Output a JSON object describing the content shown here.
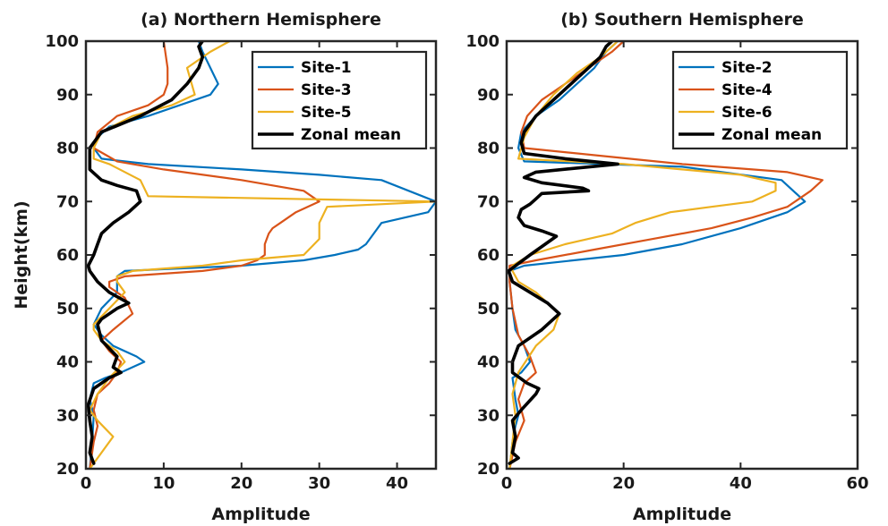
{
  "chart_data": [
    {
      "type": "line",
      "title": "(a) Northern Hemisphere",
      "xlabel": "Amplitude",
      "ylabel": "Height(km)",
      "xlim": [
        0,
        45
      ],
      "ylim": [
        20,
        100
      ],
      "xticks": [
        "0",
        "10",
        "20",
        "30",
        "40"
      ],
      "yticks": [
        "20",
        "30",
        "40",
        "50",
        "60",
        "70",
        "80",
        "90",
        "100"
      ],
      "legend_position": "top-right",
      "series": [
        {
          "name": "Site-1",
          "color": "#0072BD",
          "width": 2.2,
          "x": [
            0.5,
            0.8,
            1.0,
            0.5,
            1.0,
            2.5,
            4.5,
            7.5,
            6.5,
            3.5,
            2.0,
            1.0,
            2.0,
            4.0,
            4.0,
            4.0,
            5.0,
            20,
            28,
            32,
            35,
            36,
            37,
            38,
            44,
            45,
            38,
            30,
            20,
            8,
            2,
            1,
            1.5,
            3,
            8,
            16,
            17,
            16,
            15,
            14.5
          ],
          "y": [
            20,
            25,
            30,
            33,
            36,
            37,
            38,
            40,
            41,
            43,
            45,
            47,
            50,
            53,
            55,
            56,
            57,
            58,
            59,
            60,
            61,
            62,
            64,
            66,
            68,
            70,
            74,
            75,
            76,
            77,
            78,
            80,
            82,
            84,
            86,
            90,
            92,
            95,
            98,
            100
          ]
        },
        {
          "name": "Site-3",
          "color": "#D95319",
          "width": 2.2,
          "x": [
            0.5,
            1.0,
            1.5,
            1.0,
            1.5,
            3.0,
            4.0,
            4.5,
            3.0,
            2.0,
            3.5,
            6.0,
            5.0,
            3.0,
            3.0,
            5.0,
            15,
            20,
            22,
            23,
            23,
            23.5,
            24,
            25,
            27,
            30,
            28,
            20,
            10,
            4,
            1,
            1.5,
            4,
            8,
            10,
            10.5,
            10.5,
            10.2,
            10.0
          ],
          "y": [
            20,
            25,
            28,
            31,
            34,
            36,
            38,
            40,
            42,
            44,
            46,
            49,
            52,
            54,
            55,
            56,
            57,
            58,
            59,
            60,
            62,
            64,
            65,
            66,
            68,
            70,
            72,
            74,
            76,
            77.5,
            80,
            83,
            86,
            88,
            90,
            92,
            95,
            98,
            100
          ]
        },
        {
          "name": "Site-5",
          "color": "#EDB120",
          "width": 2.2,
          "x": [
            0.5,
            3.5,
            1.5,
            0.5,
            1.5,
            3.0,
            5.0,
            4.0,
            2.0,
            1.0,
            1.0,
            3.0,
            5.0,
            4.0,
            4.0,
            6.0,
            15,
            20,
            28,
            30,
            30,
            31,
            45,
            8,
            7,
            3,
            1,
            1,
            2,
            6,
            11,
            14,
            13,
            16,
            18.5
          ],
          "y": [
            20,
            26,
            29,
            31,
            34,
            37,
            40,
            42,
            44,
            46,
            47,
            50,
            53,
            55,
            56,
            57,
            58,
            59,
            60,
            63,
            66,
            69,
            70,
            71,
            74,
            77,
            78,
            80,
            83,
            86,
            88,
            90,
            95,
            98,
            100
          ]
        },
        {
          "name": "Zonal mean",
          "color": "#000000",
          "width": 3.6,
          "x": [
            1.0,
            0.5,
            0.8,
            0.5,
            0.3,
            1.0,
            2.0,
            3.0,
            4.5,
            3.5,
            4.0,
            2.0,
            1.5,
            2.0,
            4.0,
            5.5,
            3.0,
            1.5,
            0.5,
            0.3,
            1.0,
            1.5,
            2.0,
            3.5,
            5.5,
            7.0,
            6.5,
            4.0,
            2.0,
            0.5,
            0.5,
            0.5,
            2.0,
            7.0,
            11.0,
            13.0,
            14.5,
            15.0,
            14.5,
            15.0
          ],
          "y": [
            21,
            23,
            26,
            29,
            32,
            35,
            36,
            37,
            38,
            39,
            41,
            44,
            47,
            48,
            50,
            51,
            53,
            55,
            57,
            58,
            60,
            62,
            64,
            66,
            68,
            70,
            72,
            73,
            74,
            76,
            78,
            80,
            83,
            86,
            89,
            92,
            95,
            97,
            99,
            100
          ]
        }
      ]
    },
    {
      "type": "line",
      "title": "(b) Southern Hemisphere",
      "xlabel": "Amplitude",
      "ylabel": "",
      "xlim": [
        0,
        60
      ],
      "ylim": [
        20,
        100
      ],
      "xticks": [
        "0",
        "20",
        "40",
        "60"
      ],
      "yticks": [
        "20",
        "30",
        "40",
        "50",
        "60",
        "70",
        "80",
        "90",
        "100"
      ],
      "legend_position": "top-right",
      "series": [
        {
          "name": "Site-2",
          "color": "#0072BD",
          "width": 2.2,
          "x": [
            0.5,
            1.0,
            1.5,
            2.0,
            1.5,
            1.0,
            2.5,
            4.0,
            3.0,
            1.5,
            1.0,
            0.5,
            0.5,
            3.0,
            20,
            30,
            40,
            48,
            51,
            47,
            30,
            3.0,
            2.0,
            2.5,
            5,
            9,
            12,
            15,
            17,
            19
          ],
          "y": [
            20,
            25,
            28,
            30,
            33,
            37,
            38,
            40,
            43,
            46,
            50,
            55,
            57,
            58,
            60,
            62,
            65,
            68,
            70,
            74,
            76.5,
            77.5,
            80,
            83,
            86,
            89,
            92,
            95,
            98,
            100
          ]
        },
        {
          "name": "Site-4",
          "color": "#D95319",
          "width": 2.2,
          "x": [
            0.5,
            1.5,
            3.0,
            2.0,
            3.0,
            5.0,
            4.0,
            2.0,
            1.0,
            0.5,
            0.5,
            0.5,
            5.0,
            15,
            25,
            35,
            42,
            48,
            52,
            54,
            48,
            30,
            3.0,
            2.5,
            3.5,
            6,
            10,
            14,
            18,
            20
          ],
          "y": [
            20,
            25,
            29,
            33,
            36,
            38,
            41,
            45,
            50,
            55,
            57,
            58,
            59,
            61,
            63,
            65,
            67,
            69,
            72,
            74,
            75.5,
            77,
            80,
            83,
            86,
            89,
            92,
            95,
            98,
            100
          ]
        },
        {
          "name": "Site-6",
          "color": "#EDB120",
          "width": 2.2,
          "x": [
            0.5,
            1.0,
            1.5,
            1.0,
            2.0,
            5.0,
            8.0,
            9.0,
            8.0,
            5.0,
            2.0,
            1.0,
            1.0,
            4.0,
            10,
            18,
            22,
            28,
            35,
            42,
            46,
            46,
            40,
            20,
            2.0,
            3.0,
            5,
            8,
            12,
            16,
            19
          ],
          "y": [
            20,
            25,
            30,
            34,
            38,
            43,
            46,
            49,
            50,
            53,
            55,
            57,
            58,
            60,
            62,
            64,
            66,
            68,
            69,
            70,
            72,
            73.5,
            75,
            77,
            78,
            82,
            86,
            90,
            94,
            97,
            100
          ]
        },
        {
          "name": "Zonal mean",
          "color": "#000000",
          "width": 3.6,
          "x": [
            0.5,
            2.0,
            1.0,
            1.5,
            1.0,
            2.5,
            5.0,
            5.5,
            3.5,
            1.0,
            1.0,
            2.0,
            6.0,
            9.0,
            7.0,
            4.0,
            1.0,
            0.5,
            0.3,
            4.0,
            8.5,
            6.0,
            3.0,
            2.0,
            2.5,
            4.0,
            5.0,
            6.0,
            14.0,
            13.0,
            6.0,
            3.0,
            5.0,
            19.0,
            10.0,
            3.0,
            2.5,
            3.0,
            5.0,
            8.0,
            10.0,
            13.0,
            16.0,
            17.0,
            18.0
          ],
          "y": [
            21,
            22,
            23,
            26,
            29,
            31,
            34,
            35,
            36,
            38,
            40,
            43,
            46,
            49,
            51,
            53,
            55,
            56.5,
            57,
            60,
            63.5,
            64.5,
            65.5,
            67,
            68.5,
            69.5,
            70.5,
            71.5,
            72,
            72.5,
            73.5,
            74.5,
            75.5,
            77,
            78,
            79,
            81,
            83,
            86,
            89,
            91,
            94,
            97,
            99,
            100
          ]
        }
      ]
    }
  ]
}
